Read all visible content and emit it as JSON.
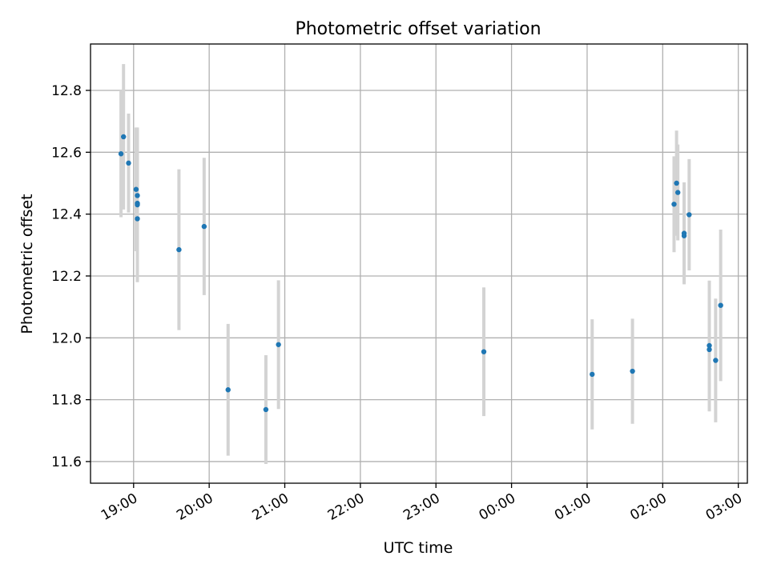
{
  "chart_data": {
    "type": "scatter",
    "title": "Photometric offset variation",
    "xlabel": "UTC time",
    "ylabel": "Photometric offset",
    "x_ticks": [
      "19:00",
      "20:00",
      "21:00",
      "22:00",
      "23:00",
      "00:00",
      "01:00",
      "02:00",
      "03:00"
    ],
    "y_ticks": [
      "11.6",
      "11.8",
      "12.0",
      "12.2",
      "12.4",
      "12.6",
      "12.8"
    ],
    "xlim_hours_from_1900": [
      -0.57,
      8.12
    ],
    "ylim": [
      11.53,
      12.95
    ],
    "grid": true,
    "marker_color": "#1f77b4",
    "errorbar_color": "#d3d3d3",
    "series": [
      {
        "points": [
          {
            "t": "18:50",
            "y": 12.595,
            "err": 0.205
          },
          {
            "t": "18:52",
            "y": 12.65,
            "err": 0.235
          },
          {
            "t": "18:56",
            "y": 12.565,
            "err": 0.16
          },
          {
            "t": "19:02",
            "y": 12.48,
            "err": 0.2
          },
          {
            "t": "19:03",
            "y": 12.46,
            "err": 0.22
          },
          {
            "t": "19:03",
            "y": 12.435,
            "err": 0.225
          },
          {
            "t": "19:03",
            "y": 12.43,
            "err": 0.15
          },
          {
            "t": "19:03",
            "y": 12.385,
            "err": 0.205
          },
          {
            "t": "19:36",
            "y": 12.285,
            "err": 0.26
          },
          {
            "t": "19:56",
            "y": 12.36,
            "err": 0.222
          },
          {
            "t": "20:15",
            "y": 11.832,
            "err": 0.213
          },
          {
            "t": "20:45",
            "y": 11.768,
            "err": 0.176
          },
          {
            "t": "20:55",
            "y": 11.978,
            "err": 0.208
          },
          {
            "t": "23:38",
            "y": 11.955,
            "err": 0.208
          },
          {
            "t": "01:04",
            "y": 11.882,
            "err": 0.178
          },
          {
            "t": "01:36",
            "y": 11.892,
            "err": 0.17
          },
          {
            "t": "02:09",
            "y": 12.432,
            "err": 0.155
          },
          {
            "t": "02:11",
            "y": 12.5,
            "err": 0.17
          },
          {
            "t": "02:12",
            "y": 12.47,
            "err": 0.155
          },
          {
            "t": "02:17",
            "y": 12.338,
            "err": 0.165
          },
          {
            "t": "02:17",
            "y": 12.33,
            "err": 0.155
          },
          {
            "t": "02:21",
            "y": 12.398,
            "err": 0.18
          },
          {
            "t": "02:37",
            "y": 11.962,
            "err": 0.2
          },
          {
            "t": "02:37",
            "y": 11.975,
            "err": 0.21
          },
          {
            "t": "02:42",
            "y": 11.927,
            "err": 0.2
          },
          {
            "t": "02:46",
            "y": 12.105,
            "err": 0.245
          }
        ]
      }
    ]
  }
}
